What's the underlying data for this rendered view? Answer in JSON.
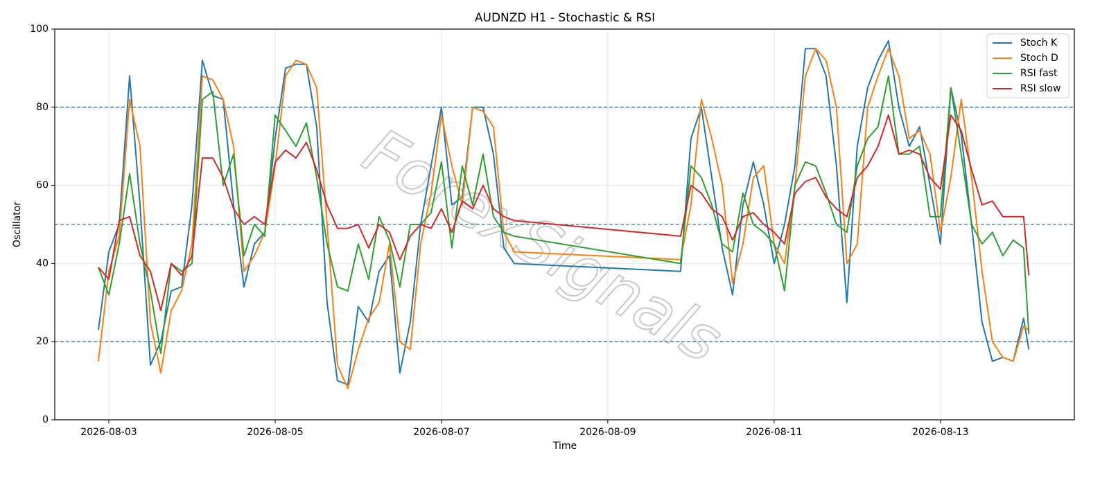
{
  "chart_data": {
    "type": "line",
    "title": "AUDNZD H1 - Stochastic & RSI",
    "x_label": "Time",
    "y_label": "Oscillator",
    "watermark": "ForexSignals",
    "x": [
      2.875,
      3,
      3.125,
      3.25,
      3.375,
      3.5,
      3.625,
      3.75,
      3.875,
      4,
      4.125,
      4.25,
      4.375,
      4.5,
      4.625,
      4.75,
      4.875,
      5,
      5.125,
      5.25,
      5.375,
      5.5,
      5.625,
      5.75,
      5.875,
      6,
      6.125,
      6.25,
      6.375,
      6.5,
      6.625,
      6.75,
      6.875,
      7,
      7.125,
      7.25,
      7.375,
      7.5,
      7.625,
      7.75,
      7.875,
      9.875,
      10,
      10.125,
      10.25,
      10.375,
      10.5,
      10.625,
      10.75,
      10.875,
      11,
      11.125,
      11.25,
      11.375,
      11.5,
      11.625,
      11.75,
      11.875,
      12,
      12.125,
      12.25,
      12.375,
      12.5,
      12.625,
      12.75,
      12.875,
      13,
      13.125,
      13.25,
      13.375,
      13.5,
      13.625,
      13.75,
      13.875,
      14,
      14.0625
    ],
    "series": [
      {
        "name": "Stoch K",
        "color": "#1f77b4",
        "values": [
          23,
          43,
          50,
          88,
          55,
          14,
          20,
          33,
          34,
          55,
          92,
          83,
          82,
          55,
          34,
          45,
          48,
          72,
          90,
          91,
          91,
          75,
          30,
          10,
          9,
          29,
          25,
          38,
          42,
          12,
          25,
          50,
          65,
          80,
          55,
          57,
          80,
          80,
          68,
          44,
          40,
          38,
          72,
          80,
          62,
          44,
          32,
          55,
          66,
          55,
          40,
          50,
          65,
          95,
          95,
          88,
          65,
          30,
          70,
          85,
          92,
          97,
          80,
          70,
          75,
          60,
          45,
          85,
          73,
          50,
          25,
          15,
          16,
          15,
          26,
          18
        ]
      },
      {
        "name": "Stoch D",
        "color": "#ff7f0e",
        "values": [
          15,
          38,
          47,
          82,
          70,
          25,
          12,
          28,
          33,
          45,
          88,
          87,
          82,
          70,
          38,
          42,
          48,
          65,
          88,
          92,
          91,
          85,
          50,
          14,
          8,
          18,
          26,
          30,
          45,
          20,
          18,
          45,
          58,
          78,
          65,
          55,
          80,
          79,
          75,
          48,
          43,
          41,
          55,
          82,
          72,
          60,
          35,
          45,
          62,
          65,
          45,
          40,
          60,
          88,
          95,
          92,
          80,
          40,
          45,
          80,
          88,
          95,
          88,
          72,
          74,
          68,
          48,
          62,
          82,
          62,
          38,
          20,
          16,
          15,
          24,
          23
        ]
      },
      {
        "name": "RSI fast",
        "color": "#2ca02c",
        "values": [
          39,
          32,
          45,
          63,
          45,
          33,
          17,
          40,
          38,
          40,
          82,
          84,
          60,
          68,
          42,
          50,
          47,
          78,
          74,
          70,
          76,
          62,
          45,
          34,
          33,
          45,
          36,
          52,
          46,
          34,
          50,
          50,
          53,
          66,
          44,
          65,
          55,
          68,
          52,
          48,
          47,
          40,
          65,
          62,
          55,
          45,
          43,
          58,
          50,
          48,
          45,
          33,
          60,
          66,
          65,
          58,
          50,
          48,
          65,
          72,
          75,
          88,
          68,
          68,
          70,
          52,
          52,
          85,
          68,
          50,
          45,
          48,
          42,
          46,
          44,
          22
        ]
      },
      {
        "name": "RSI slow",
        "color": "#d62728",
        "values": [
          39,
          36,
          51,
          52,
          42,
          38,
          28,
          40,
          37,
          42,
          67,
          67,
          62,
          54,
          50,
          52,
          50,
          66,
          69,
          67,
          71,
          64,
          55,
          49,
          49,
          50,
          44,
          50,
          48,
          41,
          47,
          50,
          49,
          54,
          48,
          56,
          54,
          60,
          54,
          52,
          51,
          47,
          60,
          58,
          54,
          52,
          46,
          52,
          53,
          50,
          48,
          45,
          58,
          61,
          62,
          57,
          54,
          52,
          62,
          65,
          70,
          78,
          68,
          69,
          68,
          62,
          59,
          78,
          74,
          64,
          55,
          56,
          52,
          52,
          52,
          37
        ]
      }
    ],
    "xlim": [
      2.35,
      14.61
    ],
    "xticks": [
      {
        "value": 3,
        "label": "2026-08-03"
      },
      {
        "value": 5,
        "label": "2026-08-05"
      },
      {
        "value": 7,
        "label": "2026-08-07"
      },
      {
        "value": 9,
        "label": "2026-08-09"
      },
      {
        "value": 11,
        "label": "2026-08-11"
      },
      {
        "value": 13,
        "label": "2026-08-13"
      }
    ],
    "ylim": [
      0,
      100
    ],
    "yticks": [
      0,
      20,
      40,
      60,
      80,
      100
    ],
    "hlines": [
      20,
      50,
      80
    ],
    "hline_color": "#1f77b4",
    "grid": true,
    "legend": "upper right"
  }
}
